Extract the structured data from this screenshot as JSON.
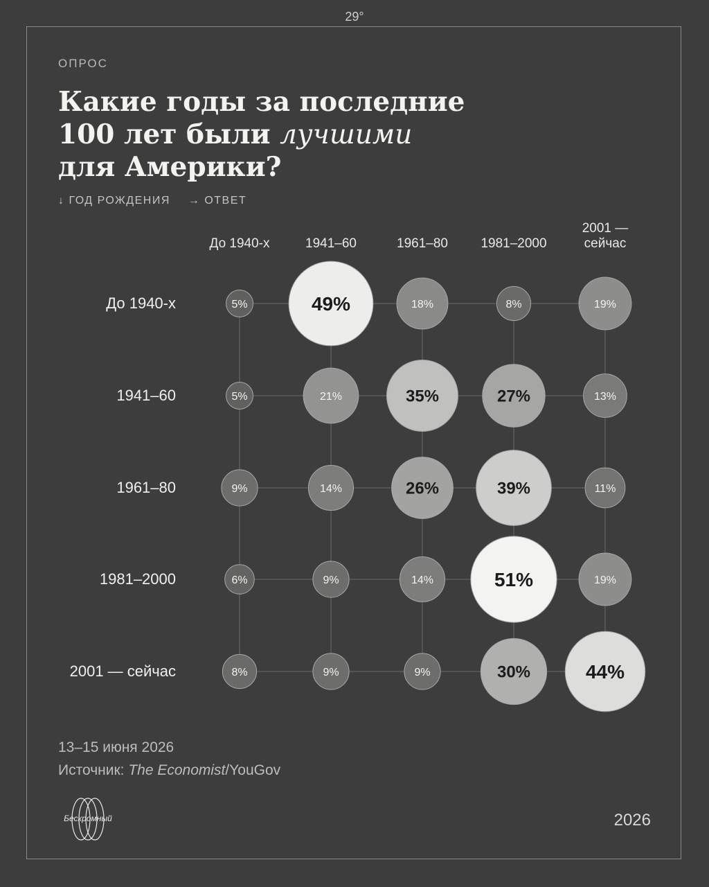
{
  "top_mark": "29°",
  "kicker": "ОПРОС",
  "title": {
    "line1": "Какие годы за последние",
    "line2_prefix": "100 лет были ",
    "line2_emphasis": "лучшими",
    "line3": "для Америки?"
  },
  "axis_legend": {
    "rows": "↓ ГОД РОЖДЕНИЯ",
    "cols": "→ ОТВЕТ"
  },
  "chart_data": {
    "type": "bubble-matrix",
    "row_axis_label": "ГОД РОЖДЕНИЯ",
    "col_axis_label": "ОТВЕТ",
    "columns": [
      [
        "До 1940-х"
      ],
      [
        "1941–60"
      ],
      [
        "1961–80"
      ],
      [
        "1981–2000"
      ],
      [
        "2001 —",
        "сейчас"
      ]
    ],
    "rows": [
      "До 1940-х",
      "1941–60",
      "1961–80",
      "1981–2000",
      "2001 — сейчас"
    ],
    "values": [
      [
        5,
        49,
        18,
        8,
        19
      ],
      [
        5,
        21,
        35,
        27,
        13
      ],
      [
        9,
        14,
        26,
        39,
        11
      ],
      [
        6,
        9,
        14,
        51,
        19
      ],
      [
        8,
        9,
        9,
        30,
        44
      ]
    ],
    "unit": "%"
  },
  "footer": {
    "date": "13–15 июня 2026",
    "source_prefix": "Источник: ",
    "source_publication": "The Economist",
    "source_suffix": "/YouGov"
  },
  "logo_text": "Бескромный",
  "year": "2026",
  "colors": {
    "background": "#3d3d3d",
    "frame": "#8a8a8a",
    "bubble_light": "#f3f2ef",
    "bubble_dark": "#5f5f5f"
  }
}
